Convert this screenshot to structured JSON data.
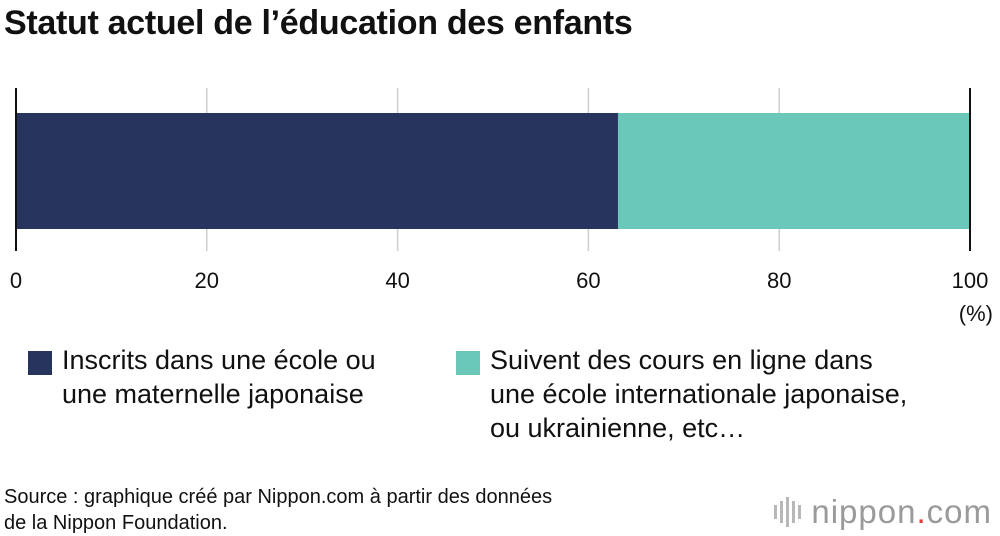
{
  "title": "Statut actuel de l’éducation des enfants",
  "chart_data": {
    "type": "bar",
    "orientation": "horizontal",
    "stacked": true,
    "categories": [
      ""
    ],
    "series": [
      {
        "name": "Inscrits dans une école ou une maternelle japonaise",
        "values": [
          63.1
        ],
        "color": "#27345e"
      },
      {
        "name": "Suivent des cours en ligne dans une école internationale japonaise, ou ukrainienne, etc…",
        "values": [
          36.9
        ],
        "color": "#6ac8bb"
      }
    ],
    "xlim": [
      0,
      100
    ],
    "xticks": [
      "0",
      "20",
      "40",
      "60",
      "80",
      "100"
    ],
    "xunit": "(%)",
    "grid": true,
    "legend_position": "bottom"
  },
  "legend": {
    "item1_line1": "Inscrits dans une école ou",
    "item1_line2": "une maternelle japonaise",
    "item2_line1": "Suivent des cours en ligne dans",
    "item2_line2": "une école internationale japonaise,",
    "item2_line3": "ou ukrainienne, etc…"
  },
  "source_line1": "Source : graphique créé par Nippon.com à partir des données",
  "source_line2": "de la Nippon Foundation.",
  "logo": {
    "name": "nippon",
    "dot": ".",
    "tld": "com",
    "icon": "nippon-logo-icon"
  }
}
